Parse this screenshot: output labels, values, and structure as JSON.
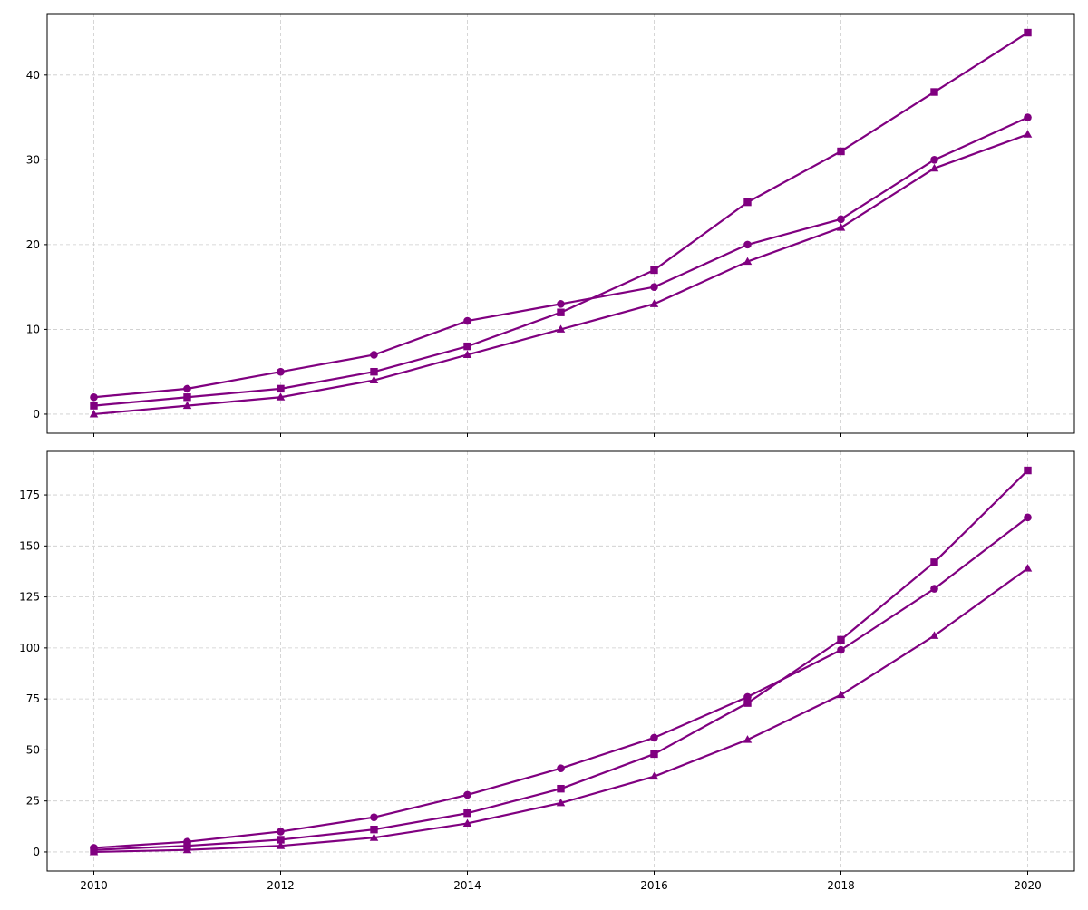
{
  "chart_data": [
    {
      "type": "line",
      "title": "",
      "xlabel": "",
      "ylabel": "",
      "x": [
        2010,
        2011,
        2012,
        2013,
        2014,
        2015,
        2016,
        2017,
        2018,
        2019,
        2020
      ],
      "xlim": [
        2009.5,
        2020.5
      ],
      "ylim": [
        -2.25,
        47.25
      ],
      "xticks": [
        2010,
        2012,
        2014,
        2016,
        2018,
        2020
      ],
      "xtick_labels_visible": false,
      "yticks": [
        0,
        10,
        20,
        30,
        40
      ],
      "grid": true,
      "legend": "none",
      "series": [
        {
          "marker": "circle",
          "color": "#800080",
          "values": [
            2,
            3,
            5,
            7,
            11,
            13,
            15,
            20,
            23,
            30,
            35
          ]
        },
        {
          "marker": "square",
          "color": "#800080",
          "values": [
            1,
            2,
            3,
            5,
            8,
            12,
            17,
            25,
            31,
            38,
            45
          ]
        },
        {
          "marker": "triangle",
          "color": "#800080",
          "values": [
            0,
            1,
            2,
            4,
            7,
            10,
            13,
            18,
            22,
            29,
            33
          ]
        }
      ]
    },
    {
      "type": "line",
      "title": "",
      "xlabel": "",
      "ylabel": "",
      "x": [
        2010,
        2011,
        2012,
        2013,
        2014,
        2015,
        2016,
        2017,
        2018,
        2019,
        2020
      ],
      "xlim": [
        2009.5,
        2020.5
      ],
      "ylim": [
        -9.35,
        196.35
      ],
      "xticks": [
        2010,
        2012,
        2014,
        2016,
        2018,
        2020
      ],
      "xtick_labels_visible": true,
      "yticks": [
        0,
        25,
        50,
        75,
        100,
        125,
        150,
        175
      ],
      "grid": true,
      "legend": "none",
      "series": [
        {
          "marker": "circle",
          "color": "#800080",
          "values": [
            2,
            5,
            10,
            17,
            28,
            41,
            56,
            76,
            99,
            129,
            164
          ]
        },
        {
          "marker": "square",
          "color": "#800080",
          "values": [
            1,
            3,
            6,
            11,
            19,
            31,
            48,
            73,
            104,
            142,
            187
          ]
        },
        {
          "marker": "triangle",
          "color": "#800080",
          "values": [
            0,
            1,
            3,
            7,
            14,
            24,
            37,
            55,
            77,
            106,
            139
          ]
        }
      ]
    }
  ]
}
